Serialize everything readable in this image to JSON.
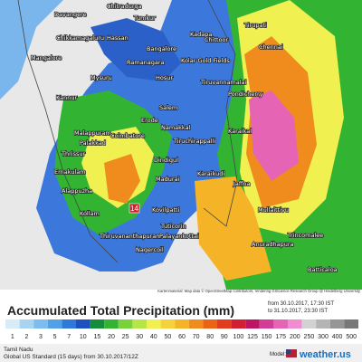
{
  "map": {
    "cities": [
      "Chitradurga",
      "Davangere",
      "Tumkur",
      "Chikkamagaluru",
      "Hassan",
      "Kadapa",
      "Mangalore",
      "Bangalore",
      "Chittoor",
      "Tirupati",
      "Chennai",
      "Ramanagara",
      "Kolar Gold Fields",
      "Mysuru",
      "Hosur",
      "Tiruvannamalai",
      "Salem",
      "Pondicherry",
      "Kannur",
      "Erode",
      "Namakkal",
      "Malappuram",
      "Coimbatore",
      "Palakkad",
      "Tiruchirappalli",
      "Karaikal",
      "Thrissur",
      "Dindigul",
      "Ernakulam",
      "Madurai",
      "Karaikudi",
      "Alappuzha",
      "Jaffna",
      "Kollam",
      "Kovilpatti",
      "Mullaittivu",
      "Thiruvananthapuram",
      "Tuticorin",
      "Trincomalee",
      "Nagercoil",
      "Palayankottai",
      "Anuradhapura",
      "Batticaloa"
    ],
    "max_label": "14",
    "credit": "Kartenmaterial: Map data © OpenStreetMap contributors, rendering GIScience Research Group @ Heidelberg University"
  },
  "legend": {
    "title": "Accumulated Total Precipitation (mm)",
    "time_from": "from 30.10.2017, 17:30 IST",
    "time_to": "to 31.10.2017, 23:30 IST",
    "values": [
      1,
      2,
      3,
      5,
      7,
      10,
      15,
      20,
      25,
      30,
      40,
      50,
      60,
      70,
      80,
      90,
      100,
      125,
      150,
      175,
      200,
      250,
      300,
      400,
      500
    ],
    "colors": [
      "#d8ecf8",
      "#a8d4f2",
      "#7cbcee",
      "#52a0e8",
      "#2f7ad8",
      "#1e50c0",
      "#148c3c",
      "#32b432",
      "#78d23c",
      "#b4e646",
      "#f0f050",
      "#f5d23c",
      "#f5b428",
      "#f08c1e",
      "#eb6414",
      "#e13c1e",
      "#d21e32",
      "#be1464",
      "#d23c96",
      "#e664b4",
      "#f08cd2",
      "#d2d2d2",
      "#b4b4b4",
      "#969696",
      "#787878"
    ]
  },
  "footer": {
    "region": "Tamil Nadu",
    "model": "Global US Standard (15 days) from 30.10.2017/12Z",
    "model_label": "Model:",
    "brand": "weather.us"
  }
}
